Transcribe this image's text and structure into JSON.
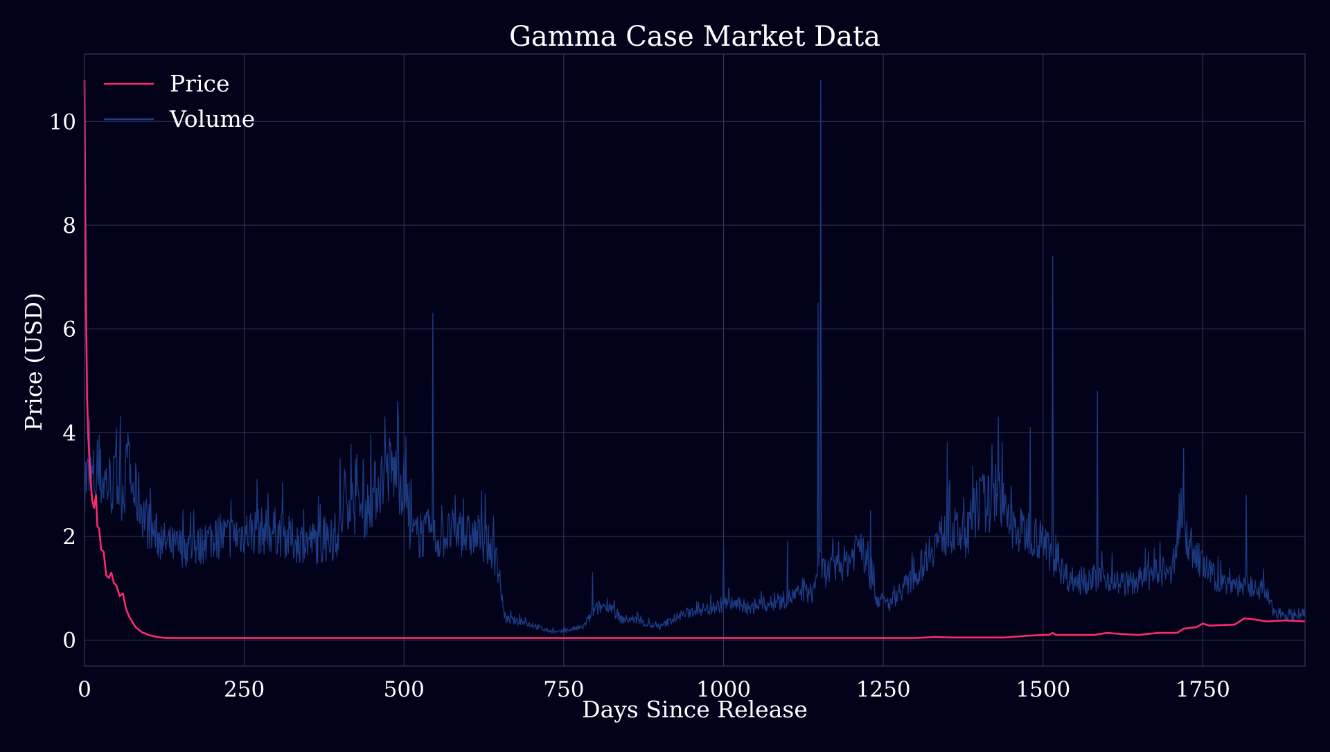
{
  "chart_data": {
    "type": "line",
    "title": "Gamma Case Market Data",
    "xlabel": "Days Since Release",
    "ylabel": "Price (USD)",
    "xlim": [
      0,
      1910
    ],
    "ylim": [
      -0.5,
      11.3
    ],
    "xticks": [
      0,
      250,
      500,
      750,
      1000,
      1250,
      1500,
      1750
    ],
    "yticks": [
      0,
      2,
      4,
      6,
      8,
      10
    ],
    "grid": true,
    "legend_position": "top-left",
    "colors": {
      "background": "#02021a",
      "grid": "#3a3a5a",
      "price": "#ff2a6d",
      "volume": "#1c3c85",
      "text": "#ffffff"
    },
    "series": [
      {
        "name": "Price",
        "color": "#ff2a6d",
        "style": "smooth",
        "x": [
          0,
          2,
          4,
          6,
          8,
          10,
          12,
          15,
          18,
          20,
          23,
          26,
          30,
          34,
          38,
          42,
          46,
          50,
          55,
          60,
          65,
          70,
          75,
          80,
          85,
          90,
          95,
          100,
          110,
          120,
          130,
          140,
          150,
          200,
          300,
          400,
          500,
          600,
          700,
          800,
          900,
          1000,
          1100,
          1200,
          1250,
          1300,
          1330,
          1360,
          1400,
          1440,
          1470,
          1500,
          1510,
          1515,
          1520,
          1550,
          1580,
          1600,
          1620,
          1650,
          1680,
          1710,
          1720,
          1740,
          1750,
          1760,
          1800,
          1810,
          1815,
          1830,
          1850,
          1880,
          1910
        ],
        "values": [
          10.8,
          6.8,
          4.7,
          3.9,
          3.4,
          3.0,
          2.7,
          2.55,
          2.8,
          2.2,
          2.15,
          1.75,
          1.7,
          1.25,
          1.2,
          1.3,
          1.1,
          1.05,
          0.85,
          0.9,
          0.6,
          0.45,
          0.35,
          0.25,
          0.2,
          0.15,
          0.13,
          0.1,
          0.07,
          0.05,
          0.04,
          0.04,
          0.04,
          0.04,
          0.04,
          0.04,
          0.04,
          0.04,
          0.04,
          0.04,
          0.04,
          0.04,
          0.04,
          0.04,
          0.04,
          0.04,
          0.06,
          0.05,
          0.05,
          0.05,
          0.08,
          0.1,
          0.1,
          0.14,
          0.1,
          0.1,
          0.1,
          0.14,
          0.12,
          0.1,
          0.14,
          0.14,
          0.22,
          0.25,
          0.32,
          0.28,
          0.3,
          0.38,
          0.42,
          0.4,
          0.36,
          0.38,
          0.36
        ]
      },
      {
        "name": "Volume",
        "color": "#1c3c85",
        "style": "noisy",
        "x": [
          0,
          5,
          10,
          20,
          30,
          40,
          50,
          60,
          68,
          75,
          85,
          100,
          120,
          140,
          160,
          180,
          200,
          230,
          260,
          280,
          300,
          330,
          360,
          380,
          400,
          410,
          420,
          440,
          460,
          470,
          480,
          490,
          500,
          510,
          520,
          530,
          545,
          550,
          560,
          580,
          600,
          620,
          640,
          650,
          655,
          660,
          680,
          700,
          720,
          740,
          760,
          780,
          800,
          820,
          840,
          860,
          880,
          900,
          920,
          940,
          960,
          980,
          1000,
          1020,
          1040,
          1060,
          1080,
          1100,
          1120,
          1140,
          1150,
          1160,
          1180,
          1200,
          1210,
          1220,
          1240,
          1260,
          1280,
          1300,
          1320,
          1340,
          1360,
          1380,
          1400,
          1420,
          1430,
          1440,
          1450,
          1460,
          1480,
          1500,
          1510,
          1515,
          1520,
          1540,
          1560,
          1580,
          1600,
          1620,
          1640,
          1660,
          1680,
          1700,
          1715,
          1720,
          1740,
          1760,
          1780,
          1800,
          1820,
          1840,
          1850,
          1860,
          1880,
          1900,
          1910
        ],
        "values": [
          3.2,
          3.0,
          3.1,
          3.1,
          3.1,
          3.0,
          3.0,
          2.9,
          3.3,
          2.9,
          2.7,
          2.2,
          1.9,
          1.8,
          1.8,
          1.8,
          2.0,
          2.0,
          2.1,
          2.1,
          2.1,
          1.9,
          1.9,
          1.8,
          2.1,
          2.8,
          2.6,
          2.5,
          3.0,
          3.2,
          3.3,
          3.1,
          3.0,
          2.1,
          2.0,
          2.0,
          2.1,
          1.9,
          2.0,
          2.1,
          2.0,
          2.0,
          1.7,
          1.2,
          0.6,
          0.4,
          0.35,
          0.3,
          0.2,
          0.15,
          0.2,
          0.25,
          0.6,
          0.7,
          0.4,
          0.4,
          0.3,
          0.25,
          0.4,
          0.5,
          0.6,
          0.6,
          0.7,
          0.7,
          0.6,
          0.7,
          0.7,
          0.8,
          0.9,
          0.9,
          1.5,
          1.3,
          1.4,
          1.6,
          1.9,
          1.6,
          0.8,
          0.7,
          1.0,
          1.2,
          1.7,
          2.0,
          2.1,
          2.0,
          2.7,
          2.6,
          3.0,
          2.4,
          2.2,
          2.1,
          2.1,
          1.9,
          1.7,
          1.6,
          1.5,
          1.2,
          1.1,
          1.2,
          1.2,
          1.1,
          1.1,
          1.2,
          1.3,
          1.2,
          2.5,
          2.1,
          1.6,
          1.3,
          1.1,
          1.1,
          1.0,
          1.0,
          0.9,
          0.55,
          0.5,
          0.5,
          0.5
        ]
      }
    ],
    "spikes": [
      {
        "x": 5,
        "y": 3.5
      },
      {
        "x": 68,
        "y": 4.0
      },
      {
        "x": 270,
        "y": 3.1
      },
      {
        "x": 400,
        "y": 3.5
      },
      {
        "x": 470,
        "y": 4.3
      },
      {
        "x": 490,
        "y": 4.6
      },
      {
        "x": 545,
        "y": 6.3
      },
      {
        "x": 580,
        "y": 2.8
      },
      {
        "x": 795,
        "y": 1.3
      },
      {
        "x": 1000,
        "y": 1.8
      },
      {
        "x": 1100,
        "y": 1.9
      },
      {
        "x": 1148,
        "y": 6.5
      },
      {
        "x": 1152,
        "y": 10.8
      },
      {
        "x": 1230,
        "y": 2.5
      },
      {
        "x": 1350,
        "y": 3.8
      },
      {
        "x": 1430,
        "y": 4.3
      },
      {
        "x": 1480,
        "y": 4.1
      },
      {
        "x": 1515,
        "y": 7.4
      },
      {
        "x": 1585,
        "y": 4.8
      },
      {
        "x": 1720,
        "y": 3.7
      },
      {
        "x": 1818,
        "y": 2.8
      }
    ]
  }
}
